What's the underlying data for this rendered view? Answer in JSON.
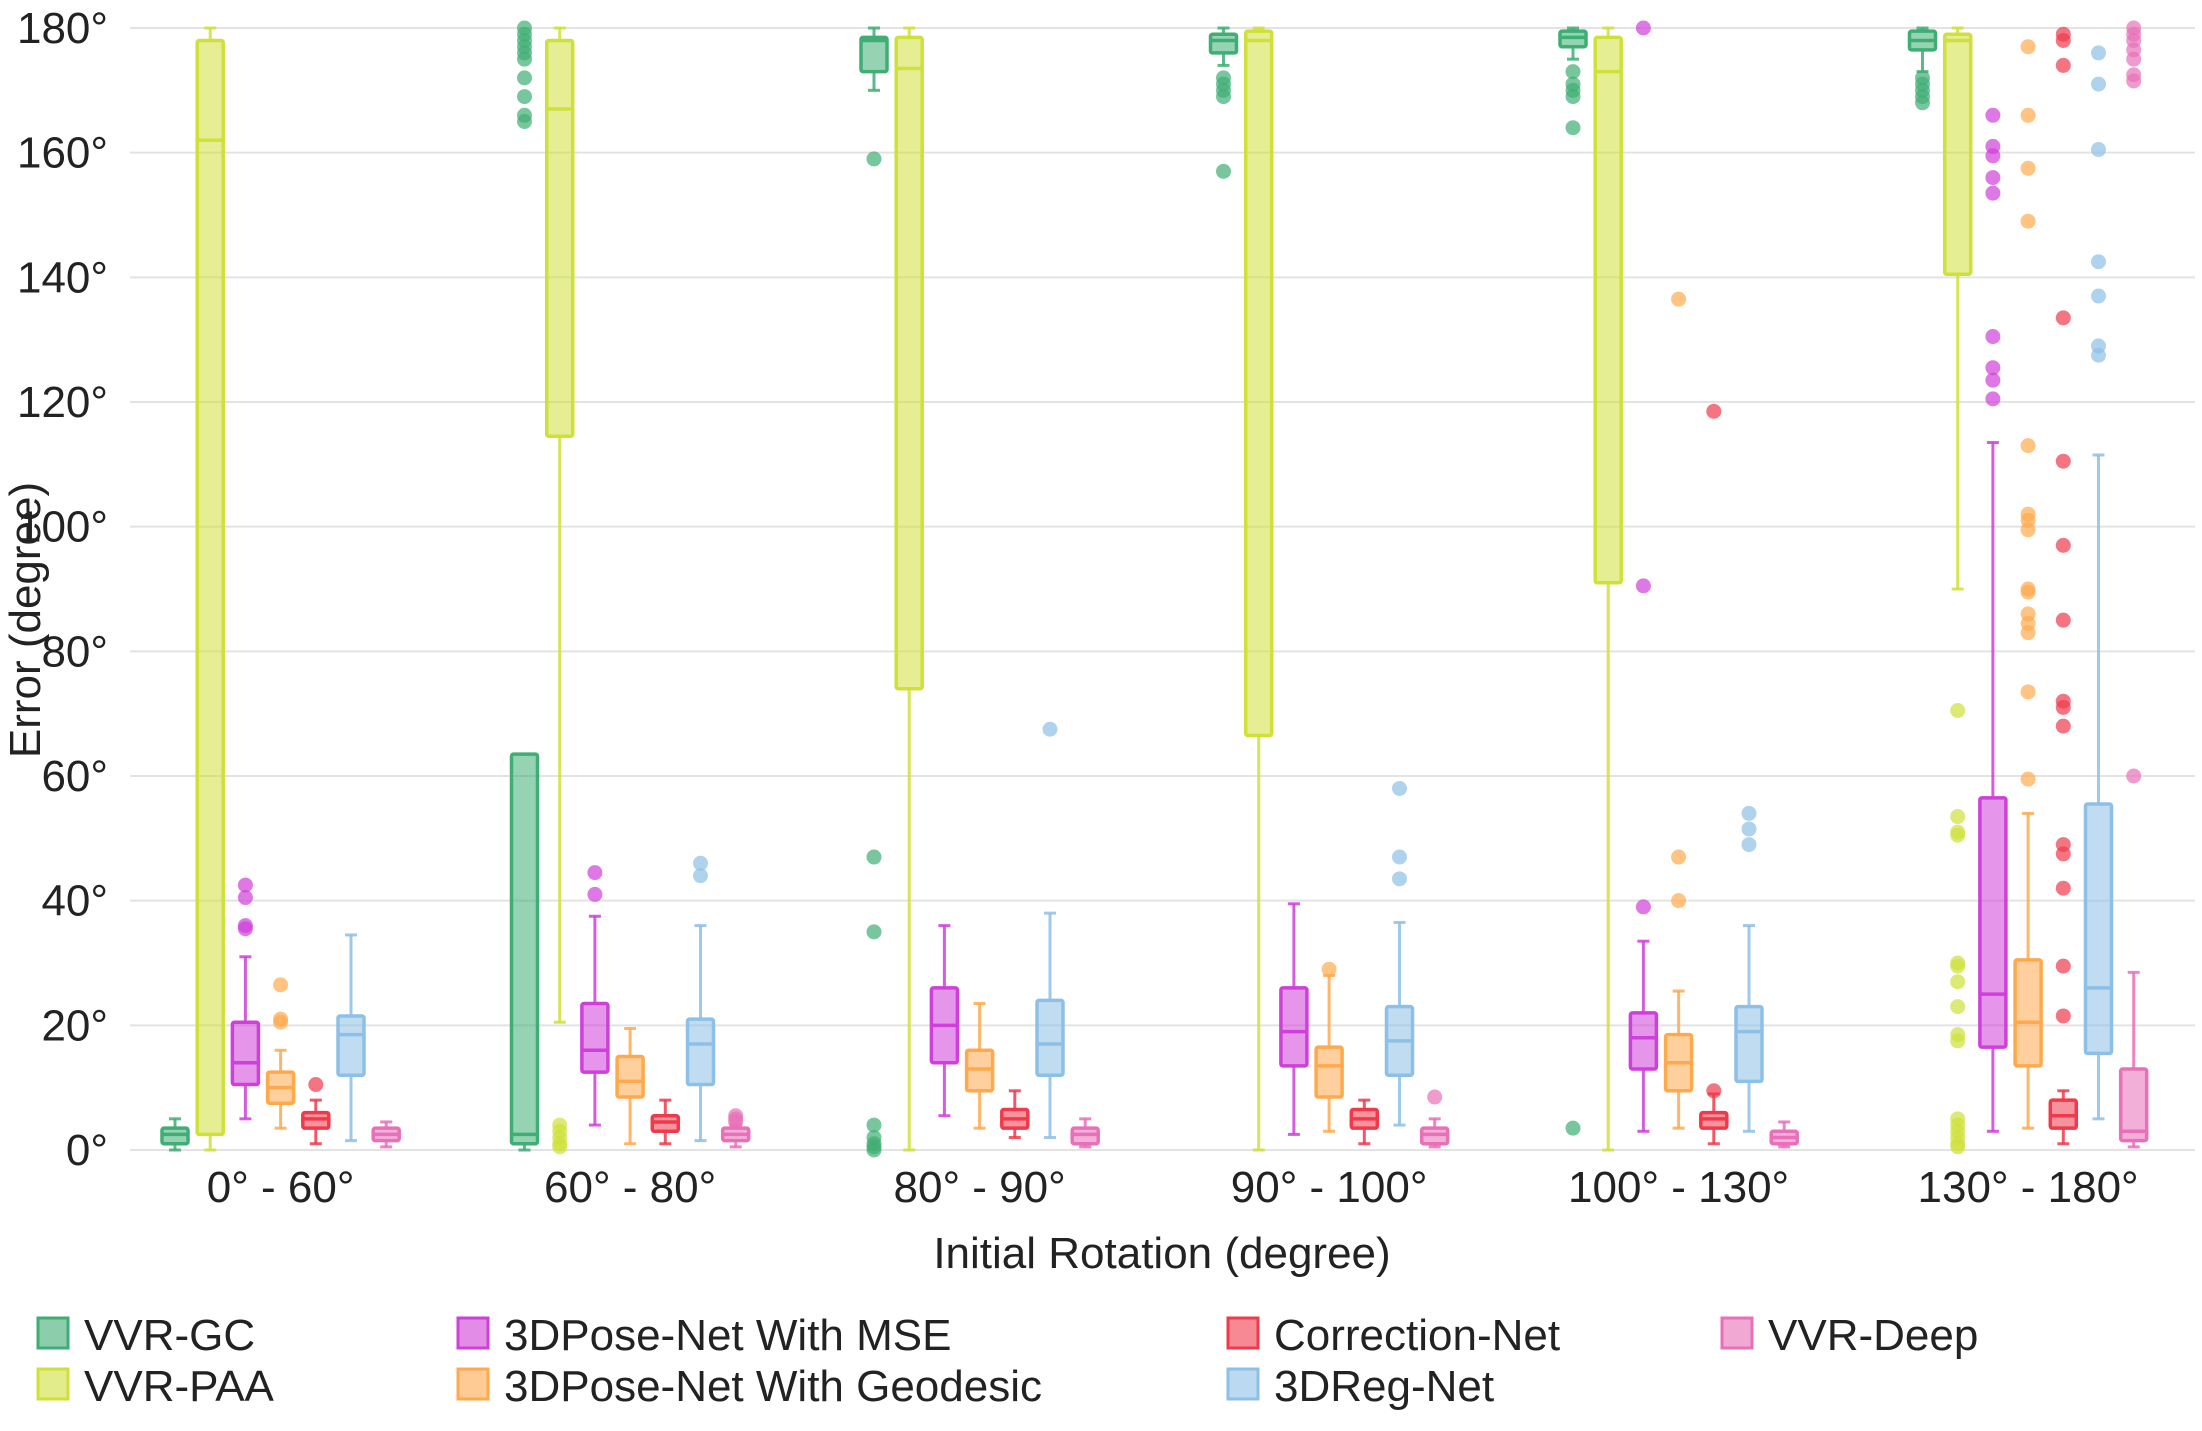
{
  "chart_data": {
    "type": "box",
    "xlabel": "Initial Rotation (degree)",
    "ylabel": "Error (degree)",
    "ylim": [
      0,
      180
    ],
    "yticks": [
      0,
      20,
      40,
      60,
      80,
      100,
      120,
      140,
      160,
      180
    ],
    "ytick_labels": [
      "0°",
      "20°",
      "40°",
      "60°",
      "80°",
      "100°",
      "120°",
      "140°",
      "160°",
      "180°"
    ],
    "grid": "horizontal",
    "legend_position": "bottom",
    "categories": [
      "0° - 60°",
      "60° - 80°",
      "80° - 90°",
      "90° - 100°",
      "100° - 130°",
      "130° - 180°"
    ],
    "series": [
      {
        "name": "VVR-GC",
        "color": "#3fae74",
        "boxes": [
          {
            "whislo": 0,
            "q1": 1,
            "med": 2.5,
            "q3": 3.5,
            "whishi": 5,
            "fliers": []
          },
          {
            "whislo": 0,
            "q1": 1,
            "med": 2.5,
            "q3": 63.5,
            "whishi": 63.5,
            "fliers": [
              165,
              166,
              169,
              172,
              175,
              176,
              177,
              178,
              179,
              180
            ]
          },
          {
            "whislo": 170,
            "q1": 173,
            "med": 178,
            "q3": 178.5,
            "whishi": 180,
            "fliers": [
              159,
              47,
              35,
              4,
              2,
              1,
              0.5,
              0
            ]
          },
          {
            "whislo": 174,
            "q1": 176,
            "med": 178,
            "q3": 179,
            "whishi": 180,
            "fliers": [
              157,
              169,
              170,
              171,
              172
            ]
          },
          {
            "whislo": 175,
            "q1": 177,
            "med": 178.5,
            "q3": 179.5,
            "whishi": 180,
            "fliers": [
              164,
              169,
              170,
              171,
              173,
              3.5
            ]
          },
          {
            "whislo": 173,
            "q1": 176.5,
            "med": 178,
            "q3": 179.5,
            "whishi": 180,
            "fliers": [
              168,
              169,
              170,
              171,
              172
            ]
          }
        ]
      },
      {
        "name": "VVR-PAA",
        "color": "#cfe03a",
        "boxes": [
          {
            "whislo": 0,
            "q1": 2.5,
            "med": 162,
            "q3": 178,
            "whishi": 180,
            "fliers": []
          },
          {
            "whislo": 20.5,
            "q1": 114.5,
            "med": 167,
            "q3": 178,
            "whishi": 180,
            "fliers": [
              0.5,
              1,
              2,
              3,
              4
            ]
          },
          {
            "whislo": 0,
            "q1": 74,
            "med": 173.5,
            "q3": 178.5,
            "whishi": 180,
            "fliers": []
          },
          {
            "whislo": 0,
            "q1": 66.5,
            "med": 178,
            "q3": 179.5,
            "whishi": 180,
            "fliers": []
          },
          {
            "whislo": 0,
            "q1": 91,
            "med": 173,
            "q3": 178.5,
            "whishi": 180,
            "fliers": []
          },
          {
            "whislo": 90,
            "q1": 140.5,
            "med": 178,
            "q3": 179,
            "whishi": 180,
            "fliers": [
              70.5,
              53.5,
              51,
              50.5,
              30,
              29.5,
              27,
              23,
              18.5,
              17.5,
              5,
              4,
              3,
              2,
              1,
              0.5
            ]
          }
        ]
      },
      {
        "name": "3DPose-Net With MSE",
        "color": "#cf3fd9",
        "boxes": [
          {
            "whislo": 5,
            "q1": 10.5,
            "med": 14,
            "q3": 20.5,
            "whishi": 31,
            "fliers": [
              35.5,
              36,
              40.5,
              42.5
            ]
          },
          {
            "whislo": 4,
            "q1": 12.5,
            "med": 16,
            "q3": 23.5,
            "whishi": 37.5,
            "fliers": [
              41,
              44.5
            ]
          },
          {
            "whislo": 5.5,
            "q1": 14,
            "med": 20,
            "q3": 26,
            "whishi": 36,
            "fliers": []
          },
          {
            "whislo": 2.5,
            "q1": 13.5,
            "med": 19,
            "q3": 26,
            "whishi": 39.5,
            "fliers": []
          },
          {
            "whislo": 3,
            "q1": 13,
            "med": 18,
            "q3": 22,
            "whishi": 33.5,
            "fliers": [
              39,
              90.5,
              180
            ]
          },
          {
            "whislo": 3,
            "q1": 16.5,
            "med": 25,
            "q3": 56.5,
            "whishi": 113.5,
            "fliers": [
              120.5,
              123.5,
              125.5,
              130.5,
              153.5,
              156,
              159.5,
              161,
              166
            ]
          }
        ]
      },
      {
        "name": "3DPose-Net With Geodesic",
        "color": "#ffa94d",
        "boxes": [
          {
            "whislo": 3.5,
            "q1": 7.5,
            "med": 10,
            "q3": 12.5,
            "whishi": 16,
            "fliers": [
              20.5,
              21,
              26.5
            ]
          },
          {
            "whislo": 1,
            "q1": 8.5,
            "med": 11,
            "q3": 15,
            "whishi": 19.5,
            "fliers": []
          },
          {
            "whislo": 3.5,
            "q1": 9.5,
            "med": 13,
            "q3": 16,
            "whishi": 23.5,
            "fliers": []
          },
          {
            "whislo": 3,
            "q1": 8.5,
            "med": 13.5,
            "q3": 16.5,
            "whishi": 28,
            "fliers": [
              29
            ]
          },
          {
            "whislo": 3.5,
            "q1": 9.5,
            "med": 14,
            "q3": 18.5,
            "whishi": 25.5,
            "fliers": [
              40,
              47,
              136.5
            ]
          },
          {
            "whislo": 3.5,
            "q1": 13.5,
            "med": 20.5,
            "q3": 30.5,
            "whishi": 54,
            "fliers": [
              59.5,
              73.5,
              83,
              84.5,
              86,
              89.5,
              90,
              99.5,
              101,
              102,
              113,
              149,
              157.5,
              166,
              177
            ]
          }
        ]
      },
      {
        "name": "Correction-Net",
        "color": "#f03a4b",
        "boxes": [
          {
            "whislo": 1,
            "q1": 3.5,
            "med": 5,
            "q3": 6,
            "whishi": 8,
            "fliers": [
              10.5
            ]
          },
          {
            "whislo": 1,
            "q1": 3,
            "med": 4.5,
            "q3": 5.5,
            "whishi": 8,
            "fliers": []
          },
          {
            "whislo": 2,
            "q1": 3.5,
            "med": 5,
            "q3": 6.5,
            "whishi": 9.5,
            "fliers": []
          },
          {
            "whislo": 1,
            "q1": 3.5,
            "med": 5,
            "q3": 6.5,
            "whishi": 8,
            "fliers": []
          },
          {
            "whislo": 1,
            "q1": 3.5,
            "med": 5,
            "q3": 6,
            "whishi": 9,
            "fliers": [
              9.5,
              118.5
            ]
          },
          {
            "whislo": 1,
            "q1": 3.5,
            "med": 5.5,
            "q3": 8,
            "whishi": 9.5,
            "fliers": [
              21.5,
              29.5,
              42,
              47.5,
              49,
              68,
              71,
              72,
              85,
              97,
              110.5,
              133.5,
              174,
              178,
              179
            ]
          }
        ]
      },
      {
        "name": "3DReg-Net",
        "color": "#8dc0e6",
        "boxes": [
          {
            "whislo": 1.5,
            "q1": 12,
            "med": 18.5,
            "q3": 21.5,
            "whishi": 34.5,
            "fliers": []
          },
          {
            "whislo": 1.5,
            "q1": 10.5,
            "med": 17,
            "q3": 21,
            "whishi": 36,
            "fliers": [
              44,
              46
            ]
          },
          {
            "whislo": 2,
            "q1": 12,
            "med": 17,
            "q3": 24,
            "whishi": 38,
            "fliers": [
              67.5
            ]
          },
          {
            "whislo": 4,
            "q1": 12,
            "med": 17.5,
            "q3": 23,
            "whishi": 36.5,
            "fliers": [
              43.5,
              47,
              58
            ]
          },
          {
            "whislo": 3,
            "q1": 11,
            "med": 19,
            "q3": 23,
            "whishi": 36,
            "fliers": [
              49,
              51.5,
              54
            ]
          },
          {
            "whislo": 5,
            "q1": 15.5,
            "med": 26,
            "q3": 55.5,
            "whishi": 111.5,
            "fliers": [
              127.5,
              129,
              137,
              142.5,
              160.5,
              171,
              176
            ]
          }
        ]
      },
      {
        "name": "VVR-Deep",
        "color": "#e870b8",
        "boxes": [
          {
            "whislo": 0.5,
            "q1": 1.5,
            "med": 2.5,
            "q3": 3.5,
            "whishi": 4.5,
            "fliers": []
          },
          {
            "whislo": 0.5,
            "q1": 1.5,
            "med": 2.5,
            "q3": 3.5,
            "whishi": 4,
            "fliers": [
              4.5,
              5,
              5.5
            ]
          },
          {
            "whislo": 0.5,
            "q1": 1,
            "med": 2.5,
            "q3": 3.5,
            "whishi": 5,
            "fliers": []
          },
          {
            "whislo": 0.5,
            "q1": 1,
            "med": 2.5,
            "q3": 3.5,
            "whishi": 5,
            "fliers": [
              8.5
            ]
          },
          {
            "whislo": 0.5,
            "q1": 1,
            "med": 2,
            "q3": 3,
            "whishi": 4.5,
            "fliers": []
          },
          {
            "whislo": 0.5,
            "q1": 1.5,
            "med": 3,
            "q3": 13,
            "whishi": 28.5,
            "fliers": [
              60,
              171.5,
              172.5,
              175,
              176.5,
              178,
              179,
              180
            ]
          }
        ]
      }
    ]
  }
}
